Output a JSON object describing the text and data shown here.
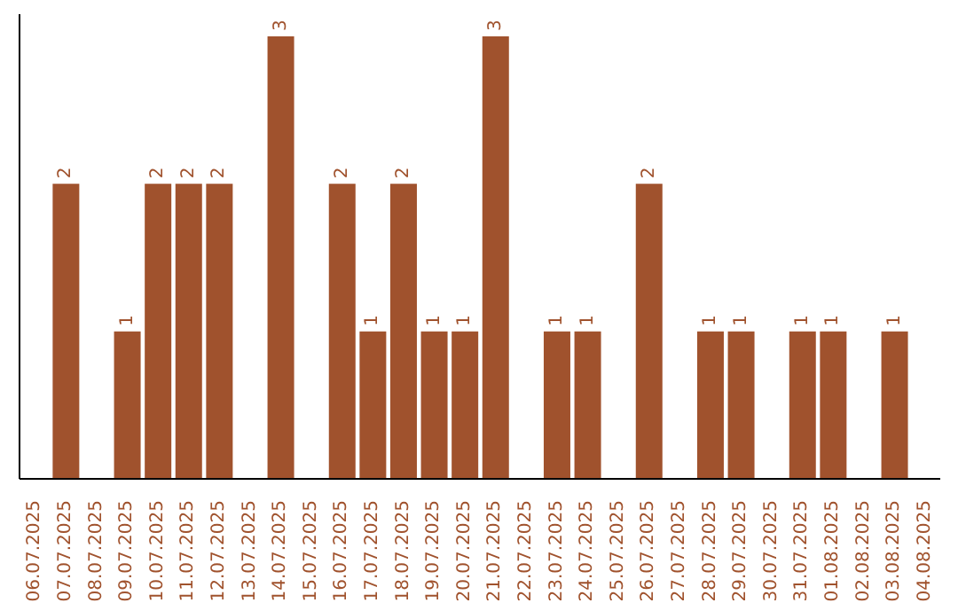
{
  "chart_data": {
    "type": "bar",
    "categories": [
      "06.07.2025",
      "07.07.2025",
      "08.07.2025",
      "09.07.2025",
      "10.07.2025",
      "11.07.2025",
      "12.07.2025",
      "13.07.2025",
      "14.07.2025",
      "15.07.2025",
      "16.07.2025",
      "17.07.2025",
      "18.07.2025",
      "19.07.2025",
      "20.07.2025",
      "21.07.2025",
      "22.07.2025",
      "23.07.2025",
      "24.07.2025",
      "25.07.2025",
      "26.07.2025",
      "27.07.2025",
      "28.07.2025",
      "29.07.2025",
      "30.07.2025",
      "31.07.2025",
      "01.08.2025",
      "02.08.2025",
      "03.08.2025",
      "04.08.2025"
    ],
    "values": [
      0,
      2,
      0,
      1,
      2,
      2,
      2,
      0,
      3,
      0,
      2,
      1,
      2,
      1,
      1,
      3,
      0,
      1,
      1,
      0,
      2,
      0,
      1,
      1,
      0,
      1,
      1,
      0,
      1,
      0
    ],
    "value_labels": [
      null,
      "2",
      null,
      "1",
      "2",
      "2",
      "2",
      null,
      "3",
      null,
      "2",
      "1",
      "2",
      "1",
      "1",
      "3",
      null,
      "1",
      "1",
      null,
      "2",
      null,
      "1",
      "1",
      null,
      "1",
      "1",
      null,
      "1",
      null
    ],
    "color": "#a0522d",
    "ylim": [
      0,
      3.15
    ],
    "tick_labels": "x",
    "grid": false,
    "legend": false
  }
}
